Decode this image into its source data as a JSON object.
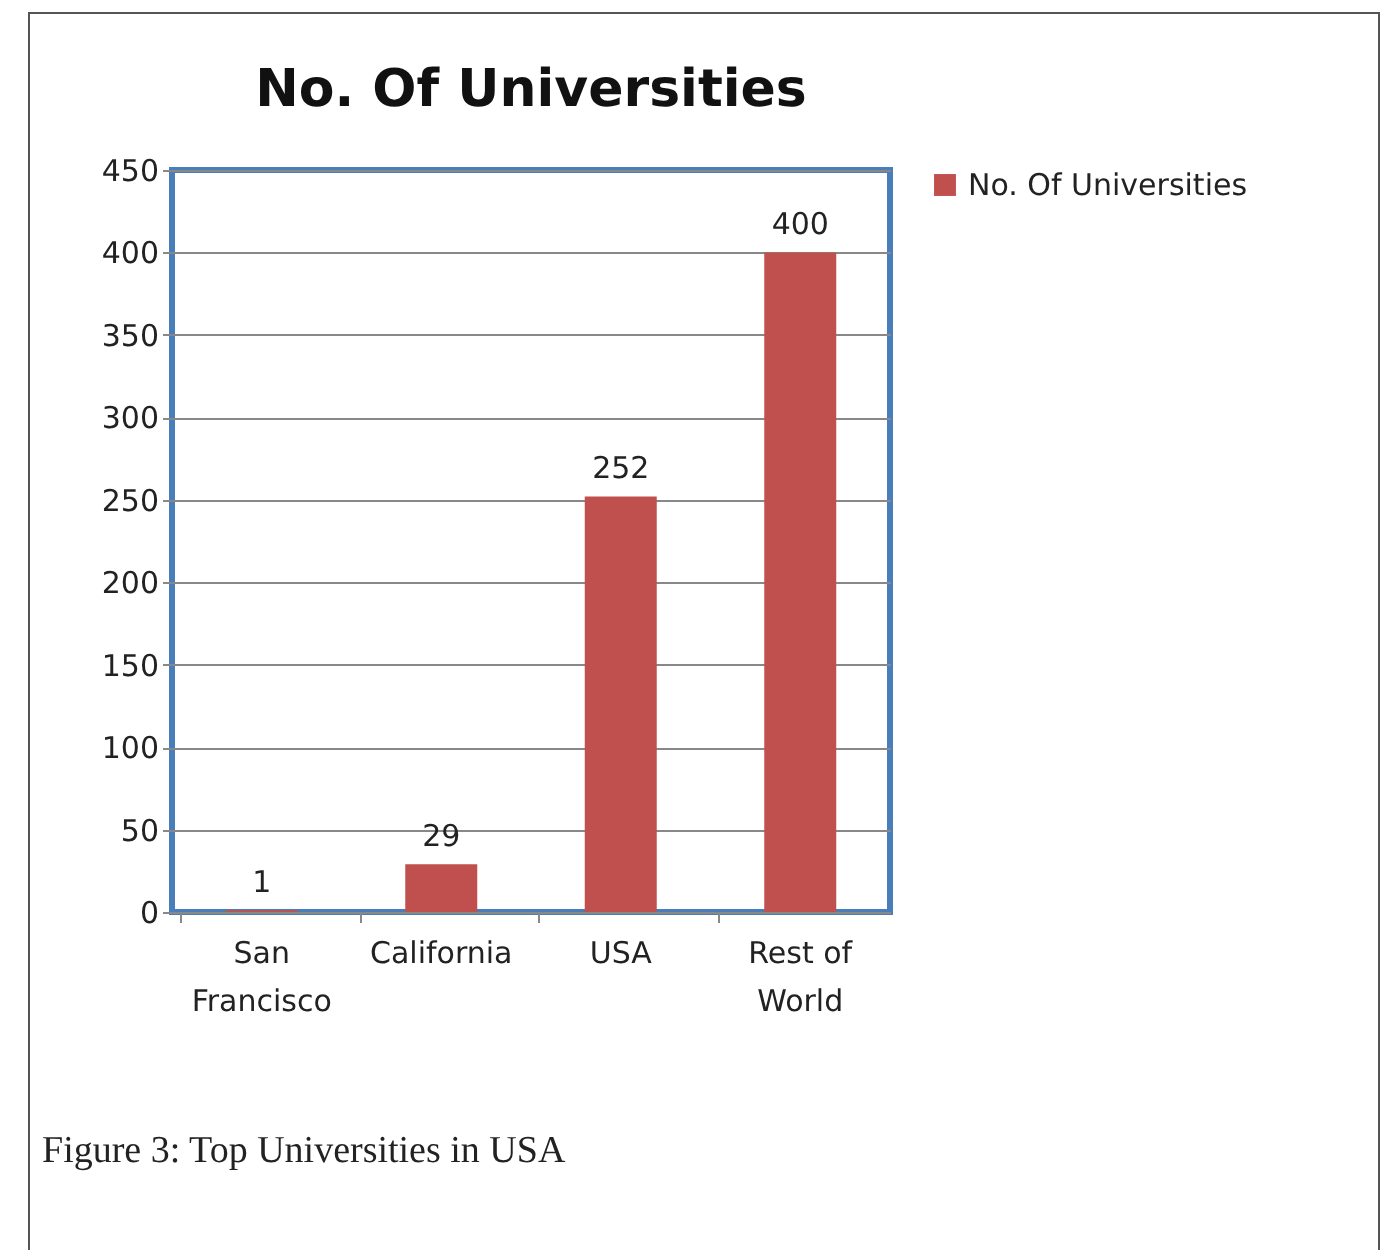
{
  "chart_data": {
    "type": "bar",
    "title": "No. Of Universities",
    "categories": [
      "San Francisco",
      "California",
      "USA",
      "Rest of World"
    ],
    "series": [
      {
        "name": "No. Of Universities",
        "color": "#c0504d",
        "values": [
          1,
          29,
          252,
          400
        ]
      }
    ],
    "ylim": [
      0,
      450
    ],
    "yticks": [
      0,
      50,
      100,
      150,
      200,
      250,
      300,
      350,
      400,
      450
    ],
    "grid": "y",
    "legend": "right",
    "data_labels": true,
    "annotations": [
      "Figure 3: Top Universities in USA"
    ]
  }
}
